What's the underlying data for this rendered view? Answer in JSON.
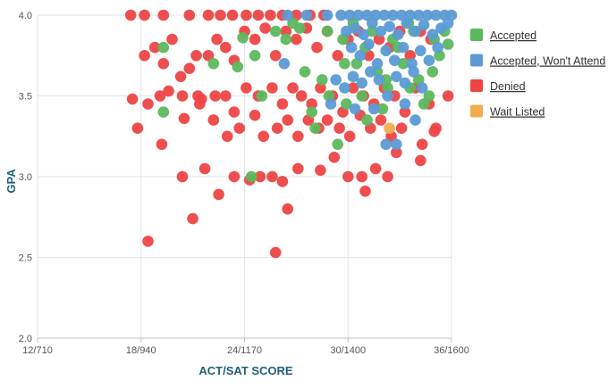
{
  "colors": {
    "accepted": "#5cb85c",
    "accepted_wont_attend": "#5b9bd5",
    "denied": "#ee4444",
    "wait_listed": "#f0ad4e",
    "grid": "#dde6ea",
    "axis": "#b9c3c8",
    "axis_title": "#1f5f7a"
  },
  "chart_data": {
    "type": "scatter",
    "xlabel": "ACT/SAT SCORE",
    "ylabel": "GPA",
    "x_unit": "ACT",
    "xlim": [
      12,
      36
    ],
    "ylim": [
      2.0,
      4.0
    ],
    "x_ticks": [
      {
        "value": 12,
        "label": "12/710"
      },
      {
        "value": 18,
        "label": "18/940"
      },
      {
        "value": 24,
        "label": "24/1170"
      },
      {
        "value": 30,
        "label": "30/1400"
      },
      {
        "value": 36,
        "label": "36/1600"
      }
    ],
    "y_ticks": [
      {
        "value": 2.0,
        "label": "2.0"
      },
      {
        "value": 2.5,
        "label": "2.5"
      },
      {
        "value": 3.0,
        "label": "3.0"
      },
      {
        "value": 3.5,
        "label": "3.5"
      },
      {
        "value": 4.0,
        "label": "4.0"
      }
    ],
    "grid": true,
    "legend_position": "right",
    "series": [
      {
        "name": "Denied",
        "color_key": "denied",
        "points": [
          [
            17.4,
            4.0
          ],
          [
            18.2,
            4.0
          ],
          [
            19.3,
            4.0
          ],
          [
            20.8,
            4.0
          ],
          [
            21.9,
            4.0
          ],
          [
            22.6,
            4.0
          ],
          [
            23.3,
            4.0
          ],
          [
            24.1,
            4.0
          ],
          [
            24.8,
            4.0
          ],
          [
            25.5,
            4.0
          ],
          [
            26.2,
            4.0
          ],
          [
            27.0,
            4.0
          ],
          [
            27.8,
            4.0
          ],
          [
            28.6,
            4.0
          ],
          [
            18.2,
            3.75
          ],
          [
            18.8,
            3.8
          ],
          [
            19.3,
            3.7
          ],
          [
            19.8,
            3.85
          ],
          [
            20.3,
            3.62
          ],
          [
            20.8,
            3.67
          ],
          [
            21.2,
            3.75
          ],
          [
            21.9,
            3.75
          ],
          [
            22.4,
            3.85
          ],
          [
            22.9,
            3.8
          ],
          [
            23.4,
            3.72
          ],
          [
            24.0,
            3.9
          ],
          [
            24.6,
            3.85
          ],
          [
            25.2,
            3.92
          ],
          [
            25.8,
            3.75
          ],
          [
            26.4,
            3.9
          ],
          [
            27.0,
            3.85
          ],
          [
            27.6,
            3.92
          ],
          [
            28.2,
            3.8
          ],
          [
            28.8,
            3.9
          ],
          [
            29.4,
            3.75
          ],
          [
            30.0,
            3.85
          ],
          [
            30.6,
            3.9
          ],
          [
            31.2,
            3.75
          ],
          [
            31.8,
            3.85
          ],
          [
            32.4,
            3.8
          ],
          [
            33.0,
            3.9
          ],
          [
            33.6,
            3.75
          ],
          [
            34.2,
            3.9
          ],
          [
            34.8,
            3.85
          ],
          [
            17.5,
            3.48
          ],
          [
            18.4,
            3.45
          ],
          [
            19.1,
            3.5
          ],
          [
            19.6,
            3.53
          ],
          [
            20.4,
            3.5
          ],
          [
            21.3,
            3.5
          ],
          [
            21.5,
            3.48
          ],
          [
            22.3,
            3.5
          ],
          [
            22.9,
            3.5
          ],
          [
            23.4,
            3.4
          ],
          [
            24.1,
            3.55
          ],
          [
            24.8,
            3.5
          ],
          [
            25.6,
            3.55
          ],
          [
            26.2,
            3.45
          ],
          [
            26.8,
            3.55
          ],
          [
            27.3,
            3.5
          ],
          [
            27.9,
            3.45
          ],
          [
            28.4,
            3.55
          ],
          [
            29.1,
            3.5
          ],
          [
            29.7,
            3.4
          ],
          [
            30.3,
            3.55
          ],
          [
            30.9,
            3.5
          ],
          [
            31.5,
            3.45
          ],
          [
            32.1,
            3.55
          ],
          [
            32.7,
            3.5
          ],
          [
            33.3,
            3.4
          ],
          [
            33.9,
            3.55
          ],
          [
            34.7,
            3.45
          ],
          [
            35.8,
            3.5
          ],
          [
            17.8,
            3.3
          ],
          [
            19.2,
            3.2
          ],
          [
            20.5,
            3.36
          ],
          [
            21.4,
            3.45
          ],
          [
            22.2,
            3.35
          ],
          [
            23.0,
            3.25
          ],
          [
            23.7,
            3.3
          ],
          [
            24.6,
            3.38
          ],
          [
            25.1,
            3.25
          ],
          [
            25.9,
            3.3
          ],
          [
            26.5,
            3.35
          ],
          [
            27.1,
            3.25
          ],
          [
            27.7,
            3.35
          ],
          [
            28.3,
            3.3
          ],
          [
            28.8,
            3.35
          ],
          [
            29.5,
            3.3
          ],
          [
            30.1,
            3.25
          ],
          [
            30.7,
            3.38
          ],
          [
            31.3,
            3.3
          ],
          [
            31.9,
            3.35
          ],
          [
            32.5,
            3.25
          ],
          [
            33.1,
            3.3
          ],
          [
            34.3,
            3.2
          ],
          [
            35.1,
            3.3
          ],
          [
            20.4,
            3.0
          ],
          [
            21.7,
            3.05
          ],
          [
            22.5,
            2.89
          ],
          [
            23.4,
            3.0
          ],
          [
            24.3,
            2.98
          ],
          [
            24.9,
            3.0
          ],
          [
            25.6,
            3.0
          ],
          [
            26.2,
            2.97
          ],
          [
            27.1,
            3.05
          ],
          [
            28.4,
            3.04
          ],
          [
            29.2,
            3.12
          ],
          [
            30.0,
            3.0
          ],
          [
            30.8,
            3.0
          ],
          [
            31.6,
            3.05
          ],
          [
            32.3,
            3.0
          ],
          [
            32.8,
            3.15
          ],
          [
            34.2,
            3.1
          ],
          [
            35.0,
            3.28
          ],
          [
            21.0,
            2.74
          ],
          [
            26.5,
            2.8
          ],
          [
            31.0,
            2.91
          ],
          [
            18.4,
            2.6
          ],
          [
            25.8,
            2.53
          ]
        ]
      },
      {
        "name": "Accepted",
        "color_key": "accepted",
        "points": [
          [
            19.3,
            3.8
          ],
          [
            19.3,
            3.4
          ],
          [
            22.2,
            3.7
          ],
          [
            23.6,
            3.68
          ],
          [
            23.9,
            3.86
          ],
          [
            24.4,
            3.0
          ],
          [
            24.6,
            3.75
          ],
          [
            25.0,
            3.5
          ],
          [
            25.8,
            3.9
          ],
          [
            26.4,
            3.85
          ],
          [
            26.8,
            3.95
          ],
          [
            27.5,
            3.65
          ],
          [
            28.1,
            3.3
          ],
          [
            28.8,
            3.9
          ],
          [
            29.4,
            3.2
          ],
          [
            29.9,
            3.45
          ],
          [
            30.5,
            3.7
          ],
          [
            31.1,
            3.35
          ],
          [
            31.7,
            3.65
          ],
          [
            32.3,
            3.55
          ],
          [
            32.9,
            3.8
          ],
          [
            33.5,
            3.95
          ],
          [
            34.1,
            3.6
          ],
          [
            34.7,
            3.5
          ],
          [
            35.3,
            3.75
          ],
          [
            35.8,
            3.82
          ],
          [
            27.9,
            3.4
          ],
          [
            28.5,
            3.6
          ],
          [
            29.7,
            3.85
          ],
          [
            30.3,
            3.95
          ],
          [
            30.8,
            3.5
          ],
          [
            31.4,
            3.9
          ],
          [
            32.0,
            3.42
          ],
          [
            32.6,
            3.85
          ],
          [
            33.2,
            3.7
          ],
          [
            33.8,
            3.9
          ],
          [
            34.4,
            3.45
          ],
          [
            35.0,
            3.85
          ],
          [
            35.6,
            3.9
          ],
          [
            27.2,
            3.92
          ],
          [
            28.9,
            3.5
          ],
          [
            29.8,
            3.7
          ],
          [
            31.0,
            3.8
          ],
          [
            32.2,
            3.6
          ],
          [
            33.6,
            3.55
          ],
          [
            34.9,
            3.65
          ]
        ]
      },
      {
        "name": "Accepted, Won't Attend",
        "color_key": "accepted_wont_attend",
        "points": [
          [
            26.5,
            4.0
          ],
          [
            27.6,
            4.0
          ],
          [
            28.8,
            4.0
          ],
          [
            29.6,
            4.0
          ],
          [
            30.1,
            4.0
          ],
          [
            30.6,
            4.0
          ],
          [
            31.1,
            4.0
          ],
          [
            31.6,
            4.0
          ],
          [
            32.1,
            4.0
          ],
          [
            32.6,
            4.0
          ],
          [
            33.1,
            4.0
          ],
          [
            33.6,
            4.0
          ],
          [
            34.1,
            4.0
          ],
          [
            34.6,
            4.0
          ],
          [
            35.1,
            4.0
          ],
          [
            35.6,
            4.0
          ],
          [
            36.0,
            4.0
          ],
          [
            29.9,
            3.9
          ],
          [
            30.4,
            3.92
          ],
          [
            30.9,
            3.88
          ],
          [
            31.4,
            3.95
          ],
          [
            31.9,
            3.9
          ],
          [
            32.4,
            3.93
          ],
          [
            32.9,
            3.88
          ],
          [
            33.4,
            3.95
          ],
          [
            33.9,
            3.9
          ],
          [
            34.4,
            3.94
          ],
          [
            34.9,
            3.88
          ],
          [
            35.4,
            3.92
          ],
          [
            35.8,
            3.95
          ],
          [
            30.2,
            3.8
          ],
          [
            30.7,
            3.75
          ],
          [
            31.2,
            3.82
          ],
          [
            31.7,
            3.7
          ],
          [
            32.2,
            3.78
          ],
          [
            32.7,
            3.72
          ],
          [
            33.2,
            3.8
          ],
          [
            33.7,
            3.7
          ],
          [
            34.2,
            3.78
          ],
          [
            34.7,
            3.72
          ],
          [
            35.2,
            3.8
          ],
          [
            29.3,
            3.6
          ],
          [
            29.8,
            3.55
          ],
          [
            30.3,
            3.62
          ],
          [
            30.8,
            3.58
          ],
          [
            31.3,
            3.65
          ],
          [
            31.8,
            3.6
          ],
          [
            32.3,
            3.5
          ],
          [
            32.8,
            3.62
          ],
          [
            33.3,
            3.58
          ],
          [
            33.8,
            3.65
          ],
          [
            34.3,
            3.55
          ],
          [
            26.3,
            3.7
          ],
          [
            29.0,
            3.45
          ],
          [
            30.4,
            3.42
          ],
          [
            31.5,
            3.42
          ],
          [
            32.2,
            3.2
          ],
          [
            32.8,
            3.2
          ],
          [
            33.3,
            3.45
          ],
          [
            33.9,
            3.35
          ]
        ]
      },
      {
        "name": "Wait Listed",
        "color_key": "wait_listed",
        "points": [
          [
            32.4,
            3.3
          ]
        ]
      }
    ],
    "legend_order": [
      "Accepted",
      "Accepted, Won't Attend",
      "Denied",
      "Wait Listed"
    ]
  }
}
